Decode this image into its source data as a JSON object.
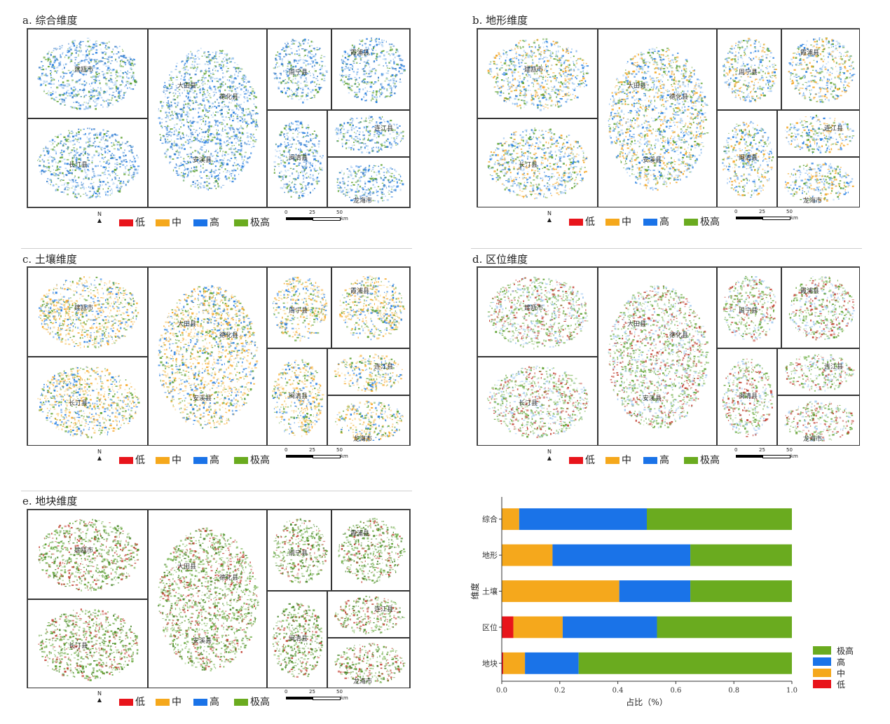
{
  "panels": [
    {
      "id": "a",
      "title": "a. 综合维度",
      "palette": [
        "#1f7ae0",
        "#5aa02c",
        "#9fc8f0",
        "#2f78c8"
      ]
    },
    {
      "id": "b",
      "title": "b. 地形维度",
      "palette": [
        "#f5a623",
        "#1f7ae0",
        "#5aa02c",
        "#9fc8f0"
      ]
    },
    {
      "id": "c",
      "title": "c. 土壤维度",
      "palette": [
        "#f5a623",
        "#f7d48a",
        "#1f7ae0",
        "#5aa02c"
      ]
    },
    {
      "id": "d",
      "title": "d. 区位维度",
      "palette": [
        "#5aa02c",
        "#8bbf6a",
        "#c0392b",
        "#9fc8f0"
      ]
    },
    {
      "id": "e",
      "title": "e. 地块维度",
      "palette": [
        "#5aa02c",
        "#8bbf6a",
        "#3e7f1c",
        "#c0392b"
      ]
    }
  ],
  "counties": [
    "建瓯市",
    "长汀县",
    "大田县",
    "德化县",
    "安溪县",
    "周宁县",
    "霞浦县",
    "闽清县",
    "连江县",
    "龙海市"
  ],
  "legend": {
    "north": "N",
    "items": [
      {
        "label": "低",
        "color": "#e8141b"
      },
      {
        "label": "中",
        "color": "#f5a81c"
      },
      {
        "label": "高",
        "color": "#1a73e8"
      },
      {
        "label": "极高",
        "color": "#6aab1f"
      }
    ],
    "scale_ticks": [
      "0",
      "25",
      "50"
    ],
    "scale_unit": "km"
  },
  "chart_data": {
    "type": "bar",
    "orientation": "horizontal",
    "stacked": true,
    "categories": [
      "综合",
      "地形",
      "土壤",
      "区位",
      "地块"
    ],
    "series": [
      {
        "name": "低",
        "color": "#e8141b",
        "values": [
          0.0,
          0.0,
          0.0,
          0.04,
          0.005
        ]
      },
      {
        "name": "中",
        "color": "#f5a81c",
        "values": [
          0.06,
          0.175,
          0.405,
          0.17,
          0.075
        ]
      },
      {
        "name": "高",
        "color": "#1a73e8",
        "values": [
          0.44,
          0.475,
          0.245,
          0.325,
          0.185
        ]
      },
      {
        "name": "极高",
        "color": "#6aab1f",
        "values": [
          0.5,
          0.35,
          0.35,
          0.465,
          0.735
        ]
      }
    ],
    "xlabel": "占比（%）",
    "ylabel": "维度",
    "xlim": [
      0.0,
      1.0
    ],
    "xticks": [
      "0.0",
      "0.2",
      "0.4",
      "0.6",
      "0.8",
      "1.0"
    ],
    "legend_position": "right-bottom",
    "legend_order": [
      "极高",
      "高",
      "中",
      "低"
    ]
  }
}
